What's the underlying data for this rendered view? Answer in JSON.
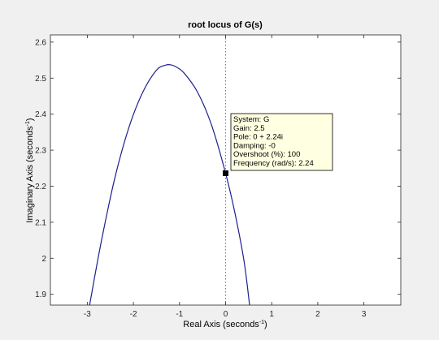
{
  "chart_data": {
    "type": "line",
    "title": "root locus of G(s)",
    "xlabel": "Real Axis (seconds",
    "xlabel_sup": "-1",
    "xlabel_end": ")",
    "ylabel": "Imaginary Axis (seconds",
    "ylabel_sup": "-1",
    "ylabel_end": ")",
    "xlim": [
      -3.8,
      3.8
    ],
    "ylim": [
      1.87,
      2.62
    ],
    "xticks": [
      -3,
      -2,
      -1,
      0,
      1,
      2,
      3
    ],
    "yticks": [
      1.9,
      2.0,
      2.1,
      2.2,
      2.3,
      2.4,
      2.5,
      2.6
    ],
    "ytick_labels": [
      "1.9",
      "2",
      "2.1",
      "2.2",
      "2.3",
      "2.4",
      "2.5",
      "2.6"
    ],
    "grid": false,
    "colors": {
      "locus": "#1f1f8f",
      "tooltip_bg": "#ffffe1",
      "axes_bg": "#ffffff",
      "figure_bg": "#f0f0f0"
    },
    "series": [
      {
        "x": [
          -2.95,
          -2.7,
          -2.4,
          -2.1,
          -1.8,
          -1.5,
          -1.3,
          -1.2,
          -1.1,
          -0.9,
          -0.6,
          -0.3,
          0.0,
          0.2,
          0.4,
          0.52
        ],
        "y": [
          1.87,
          2.044,
          2.224,
          2.362,
          2.46,
          2.522,
          2.536,
          2.537,
          2.533,
          2.514,
          2.459,
          2.368,
          2.236,
          2.127,
          1.992,
          1.87
        ]
      }
    ],
    "reference_line": {
      "x": 0,
      "style": "dotted"
    },
    "datatip": {
      "x": 0,
      "y": 2.236,
      "lines": [
        "System: G",
        "Gain: 2.5",
        "Pole: 0 + 2.24i",
        "Damping: -0",
        "Overshoot (%): 100",
        "Frequency (rad/s): 2.24"
      ]
    }
  }
}
